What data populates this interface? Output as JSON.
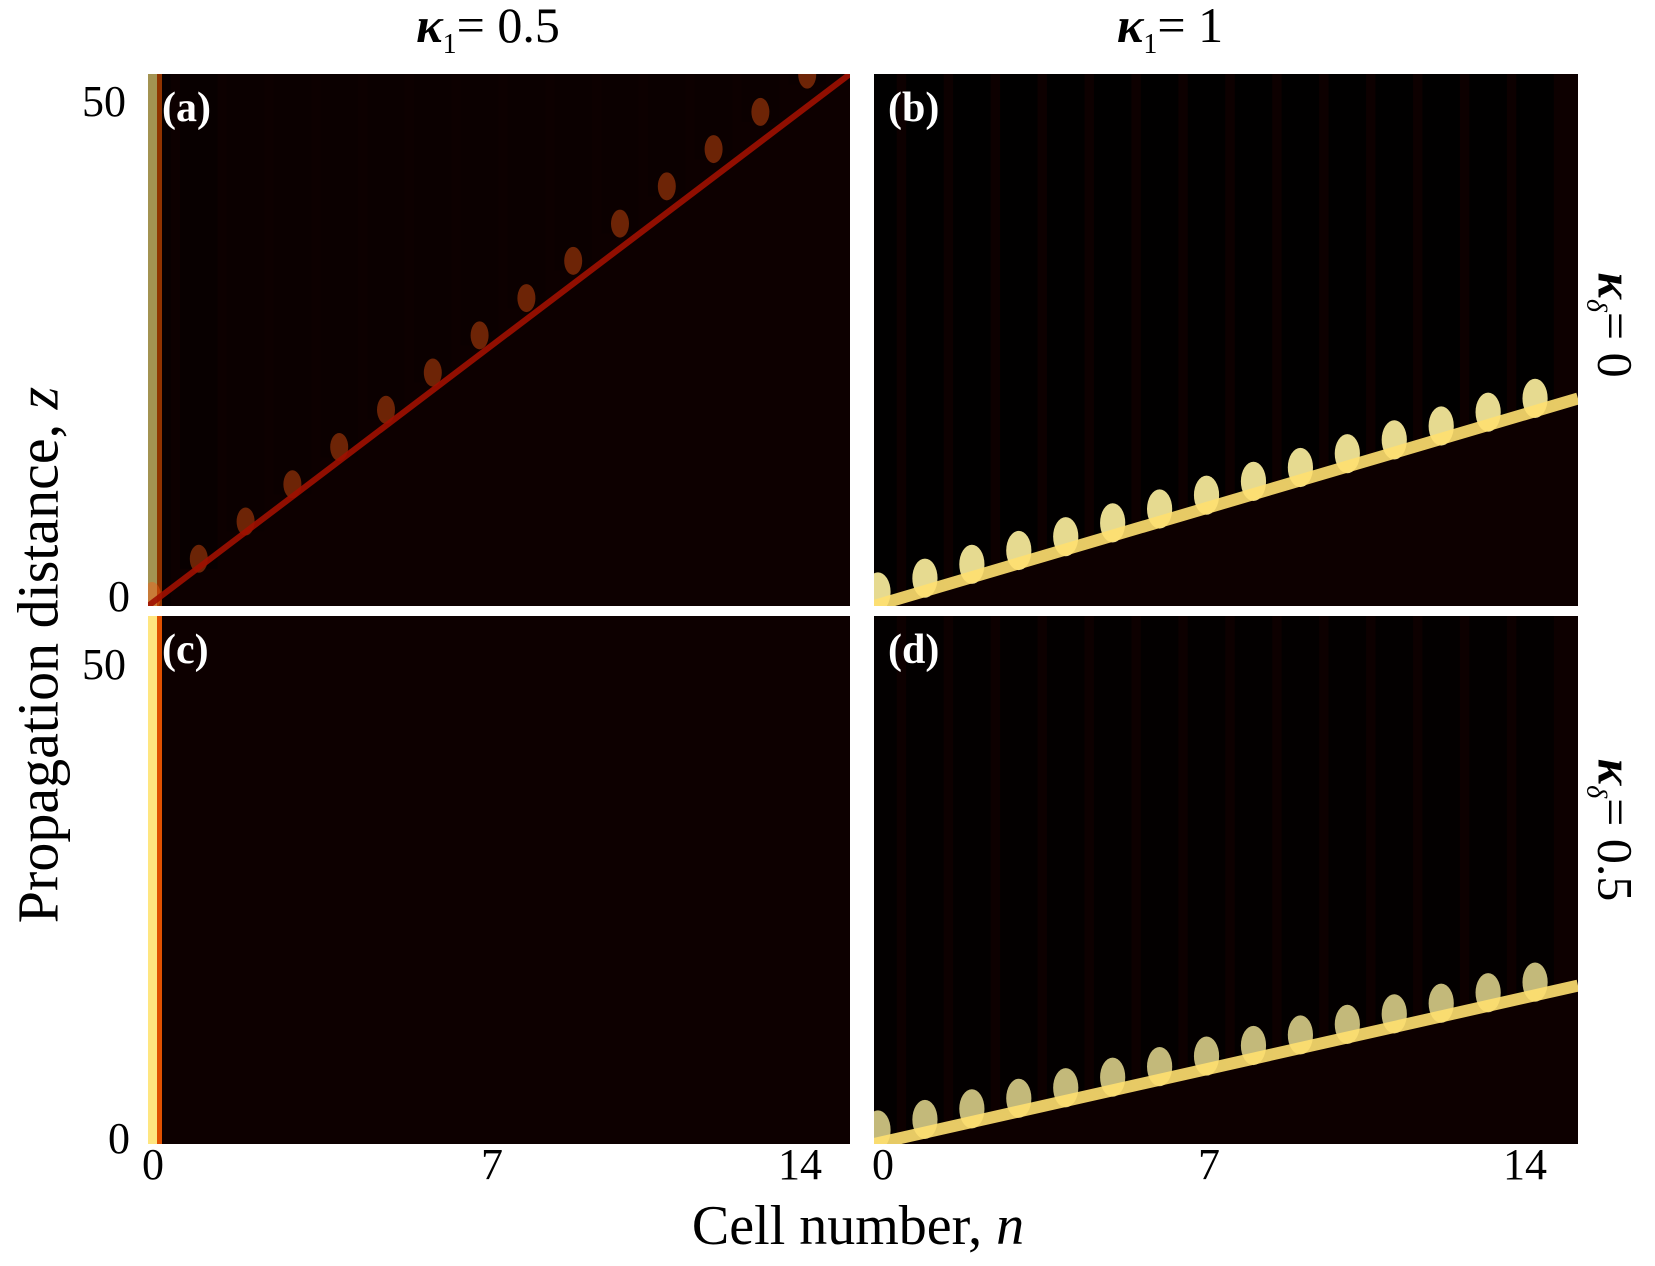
{
  "col_titles": [
    {
      "symbol": "κ",
      "sub": "1",
      "eq": "= 0.5"
    },
    {
      "symbol": "κ",
      "sub": "1",
      "eq": "= 1"
    }
  ],
  "row_labels": [
    {
      "symbol": "κ",
      "sub": "δ",
      "eq": "= 0"
    },
    {
      "symbol": "κ",
      "sub": "δ",
      "eq": "= 0.5"
    }
  ],
  "ylabel": {
    "text": "Propagation distance,",
    "var": "z"
  },
  "xlabel": {
    "text": "Cell number,",
    "var": "n"
  },
  "chart_data": {
    "type": "heatmap",
    "colormap": "hot (black-red-yellow-white)",
    "x_ticks": [
      "0",
      "7",
      "14"
    ],
    "y_ticks": [
      "0",
      "50"
    ],
    "xlim": [
      0,
      14
    ],
    "ylim": [
      0,
      50
    ],
    "panels": [
      {
        "label": "(a)",
        "kappa1": 0.5,
        "kappa_delta": 0,
        "edge_state": true,
        "bulk_propagation": "weak",
        "bulk_brightness": 0.45,
        "diagonal_slope": 3.5
      },
      {
        "label": "(b)",
        "kappa1": 1,
        "kappa_delta": 0,
        "edge_state": false,
        "bulk_propagation": "strong",
        "bulk_brightness": 1.0,
        "diagonal_slope": 1.3
      },
      {
        "label": "(c)",
        "kappa1": 0.5,
        "kappa_delta": 0.5,
        "edge_state": true,
        "bulk_propagation": "none",
        "bulk_brightness": 0.0,
        "diagonal_slope": 0
      },
      {
        "label": "(d)",
        "kappa1": 1,
        "kappa_delta": 0.5,
        "edge_state": false,
        "bulk_propagation": "strong",
        "bulk_brightness": 0.85,
        "diagonal_slope": 1.0
      }
    ]
  }
}
